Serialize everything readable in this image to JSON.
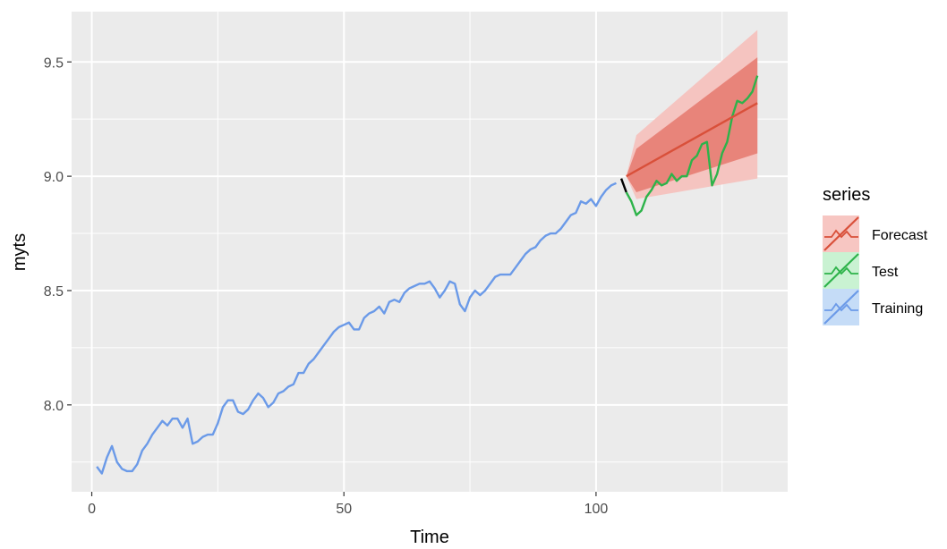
{
  "chart_data": {
    "type": "line",
    "xlabel": "Time",
    "ylabel": "myts",
    "xlim": [
      -4,
      138
    ],
    "ylim": [
      7.62,
      9.72
    ],
    "x_ticks": [
      {
        "value": 0,
        "label": "0"
      },
      {
        "value": 50,
        "label": "50"
      },
      {
        "value": 100,
        "label": "100"
      }
    ],
    "y_ticks": [
      {
        "value": 8.0,
        "label": "8.0"
      },
      {
        "value": 8.5,
        "label": "8.5"
      },
      {
        "value": 9.0,
        "label": "9.0"
      },
      {
        "value": 9.5,
        "label": "9.5"
      }
    ],
    "grid": true,
    "legend": {
      "title": "series",
      "position": "right",
      "entries": [
        "Forecast",
        "Test",
        "Training"
      ]
    },
    "series": [
      {
        "name": "Training",
        "color": "#6b9ae8",
        "x": [
          1,
          2,
          3,
          4,
          5,
          6,
          7,
          8,
          9,
          10,
          11,
          12,
          13,
          14,
          15,
          16,
          17,
          18,
          19,
          20,
          21,
          22,
          23,
          24,
          25,
          26,
          27,
          28,
          29,
          30,
          31,
          32,
          33,
          34,
          35,
          36,
          37,
          38,
          39,
          40,
          41,
          42,
          43,
          44,
          45,
          46,
          47,
          48,
          49,
          50,
          51,
          52,
          53,
          54,
          55,
          56,
          57,
          58,
          59,
          60,
          61,
          62,
          63,
          64,
          65,
          66,
          67,
          68,
          69,
          70,
          71,
          72,
          73,
          74,
          75,
          76,
          77,
          78,
          79,
          80,
          81,
          82,
          83,
          84,
          85,
          86,
          87,
          88,
          89,
          90,
          91,
          92,
          93,
          94,
          95,
          96,
          97,
          98,
          99,
          100,
          101,
          102,
          103,
          104
        ],
        "values": [
          7.73,
          7.7,
          7.77,
          7.82,
          7.75,
          7.72,
          7.71,
          7.71,
          7.74,
          7.8,
          7.83,
          7.87,
          7.9,
          7.93,
          7.91,
          7.94,
          7.94,
          7.9,
          7.94,
          7.83,
          7.84,
          7.86,
          7.87,
          7.87,
          7.92,
          7.99,
          8.02,
          8.02,
          7.97,
          7.96,
          7.98,
          8.02,
          8.05,
          8.03,
          7.99,
          8.01,
          8.05,
          8.06,
          8.08,
          8.09,
          8.14,
          8.14,
          8.18,
          8.2,
          8.23,
          8.26,
          8.29,
          8.32,
          8.34,
          8.35,
          8.36,
          8.33,
          8.33,
          8.38,
          8.4,
          8.41,
          8.43,
          8.4,
          8.45,
          8.46,
          8.45,
          8.49,
          8.51,
          8.52,
          8.53,
          8.53,
          8.54,
          8.51,
          8.47,
          8.5,
          8.54,
          8.53,
          8.44,
          8.41,
          8.47,
          8.5,
          8.48,
          8.5,
          8.53,
          8.56,
          8.57,
          8.57,
          8.57,
          8.6,
          8.63,
          8.66,
          8.68,
          8.69,
          8.72,
          8.74,
          8.75,
          8.75,
          8.77,
          8.8,
          8.83,
          8.84,
          8.89,
          8.88,
          8.9,
          8.87,
          8.91,
          8.94,
          8.96,
          8.97
        ]
      },
      {
        "name": "",
        "color": "#000000",
        "x": [
          105,
          106
        ],
        "values": [
          8.99,
          8.93
        ]
      },
      {
        "name": "Test",
        "color": "#2db34a",
        "x": [
          106,
          107,
          108,
          109,
          110,
          111,
          112,
          113,
          114,
          115,
          116,
          117,
          118,
          119,
          120,
          121,
          122,
          123,
          124,
          125,
          126,
          127,
          128,
          129,
          130,
          131,
          132
        ],
        "values": [
          8.93,
          8.89,
          8.83,
          8.85,
          8.91,
          8.94,
          8.98,
          8.96,
          8.97,
          9.01,
          8.98,
          9.0,
          9.0,
          9.07,
          9.09,
          9.14,
          9.15,
          8.96,
          9.01,
          9.1,
          9.15,
          9.26,
          9.33,
          9.32,
          9.34,
          9.37,
          9.44
        ]
      },
      {
        "name": "Forecast",
        "color": "#d9503a",
        "x": [
          106,
          132
        ],
        "values": [
          9.0,
          9.32
        ],
        "interval_80": {
          "color": "#e8847a",
          "lower": [
            9.0,
            8.93,
            9.1
          ],
          "upper": [
            9.0,
            9.12,
            9.52
          ],
          "x": [
            106,
            108,
            132
          ]
        },
        "interval_95": {
          "color": "#f5c4c0",
          "lower": [
            9.0,
            8.9,
            8.99
          ],
          "upper": [
            9.0,
            9.18,
            9.64
          ],
          "x": [
            106,
            108,
            132
          ]
        }
      }
    ]
  }
}
